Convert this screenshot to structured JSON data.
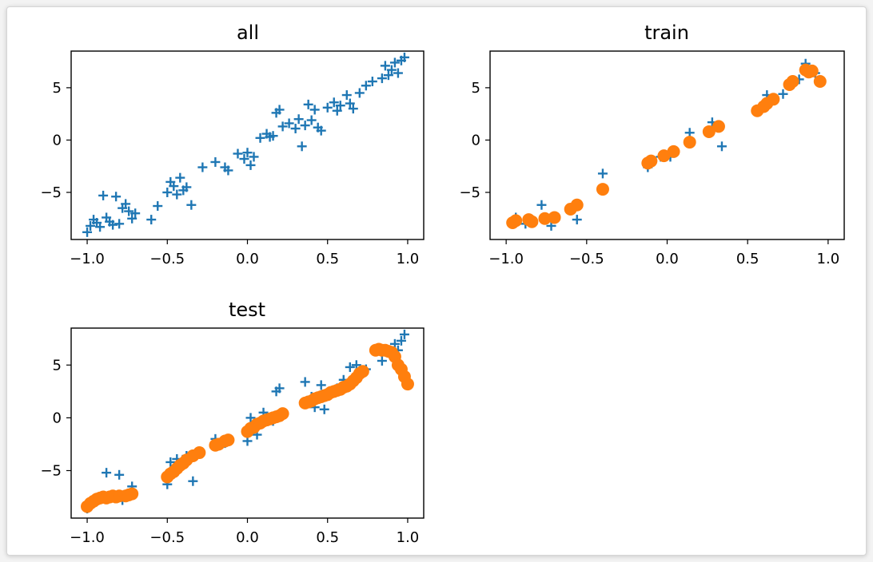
{
  "colors": {
    "series_plus": "#1f77b4",
    "series_dot": "#ff7f0e"
  },
  "chart_data": [
    {
      "type": "scatter",
      "title": "all",
      "xlim": [
        -1.1,
        1.1
      ],
      "ylim": [
        -9.5,
        8.5
      ],
      "xticks": [
        -1.0,
        -0.5,
        0.0,
        0.5,
        1.0
      ],
      "xtick_labels": [
        "−1.0",
        "−0.5",
        "0.0",
        "0.5",
        "1.0"
      ],
      "yticks": [
        -5,
        0,
        5
      ],
      "ytick_labels": [
        "−5",
        "0",
        "5"
      ],
      "series": [
        {
          "marker": "plus",
          "color": "#1f77b4",
          "points": [
            [
              -1.0,
              -8.8
            ],
            [
              -0.98,
              -8.2
            ],
            [
              -0.96,
              -7.6
            ],
            [
              -0.94,
              -7.9
            ],
            [
              -0.92,
              -8.3
            ],
            [
              -0.9,
              -5.3
            ],
            [
              -0.88,
              -7.4
            ],
            [
              -0.86,
              -7.8
            ],
            [
              -0.84,
              -8.1
            ],
            [
              -0.82,
              -5.4
            ],
            [
              -0.8,
              -8.0
            ],
            [
              -0.78,
              -6.5
            ],
            [
              -0.76,
              -6.1
            ],
            [
              -0.74,
              -6.8
            ],
            [
              -0.72,
              -7.5
            ],
            [
              -0.7,
              -7.0
            ],
            [
              -0.6,
              -7.6
            ],
            [
              -0.56,
              -6.3
            ],
            [
              -0.5,
              -5.0
            ],
            [
              -0.48,
              -4.0
            ],
            [
              -0.46,
              -4.4
            ],
            [
              -0.44,
              -5.2
            ],
            [
              -0.42,
              -3.6
            ],
            [
              -0.4,
              -4.8
            ],
            [
              -0.38,
              -4.5
            ],
            [
              -0.35,
              -6.2
            ],
            [
              -0.28,
              -2.6
            ],
            [
              -0.2,
              -2.1
            ],
            [
              -0.14,
              -2.6
            ],
            [
              -0.12,
              -2.9
            ],
            [
              -0.06,
              -1.3
            ],
            [
              -0.02,
              -1.8
            ],
            [
              0.0,
              -1.2
            ],
            [
              0.02,
              -2.4
            ],
            [
              0.04,
              -1.6
            ],
            [
              0.08,
              0.2
            ],
            [
              0.12,
              0.6
            ],
            [
              0.14,
              0.3
            ],
            [
              0.16,
              0.4
            ],
            [
              0.18,
              2.6
            ],
            [
              0.2,
              2.9
            ],
            [
              0.22,
              1.3
            ],
            [
              0.26,
              1.6
            ],
            [
              0.3,
              1.1
            ],
            [
              0.32,
              2.0
            ],
            [
              0.34,
              -0.6
            ],
            [
              0.36,
              1.4
            ],
            [
              0.38,
              3.4
            ],
            [
              0.4,
              1.9
            ],
            [
              0.42,
              2.9
            ],
            [
              0.44,
              1.2
            ],
            [
              0.46,
              0.9
            ],
            [
              0.5,
              3.1
            ],
            [
              0.54,
              3.6
            ],
            [
              0.56,
              2.8
            ],
            [
              0.58,
              3.3
            ],
            [
              0.62,
              4.3
            ],
            [
              0.64,
              3.5
            ],
            [
              0.66,
              3.0
            ],
            [
              0.7,
              4.5
            ],
            [
              0.74,
              5.2
            ],
            [
              0.78,
              5.6
            ],
            [
              0.84,
              5.9
            ],
            [
              0.86,
              7.1
            ],
            [
              0.88,
              6.2
            ],
            [
              0.9,
              6.7
            ],
            [
              0.92,
              7.4
            ],
            [
              0.94,
              6.4
            ],
            [
              0.96,
              7.6
            ],
            [
              0.98,
              7.9
            ]
          ]
        }
      ]
    },
    {
      "type": "scatter",
      "title": "train",
      "xlim": [
        -1.1,
        1.1
      ],
      "ylim": [
        -9.5,
        8.5
      ],
      "xticks": [
        -1.0,
        -0.5,
        0.0,
        0.5,
        1.0
      ],
      "xtick_labels": [
        "−1.0",
        "−0.5",
        "0.0",
        "0.5",
        "1.0"
      ],
      "yticks": [
        -5,
        0,
        5
      ],
      "ytick_labels": [
        "−5",
        "0",
        "5"
      ],
      "series": [
        {
          "marker": "plus",
          "color": "#1f77b4",
          "points": [
            [
              -0.94,
              -7.4
            ],
            [
              -0.88,
              -8.0
            ],
            [
              -0.78,
              -6.2
            ],
            [
              -0.72,
              -8.2
            ],
            [
              -0.56,
              -7.6
            ],
            [
              -0.4,
              -3.2
            ],
            [
              -0.12,
              -2.6
            ],
            [
              -0.04,
              -1.6
            ],
            [
              0.02,
              -1.6
            ],
            [
              0.14,
              0.7
            ],
            [
              0.28,
              1.7
            ],
            [
              0.34,
              -0.6
            ],
            [
              0.58,
              3.0
            ],
            [
              0.62,
              4.3
            ],
            [
              0.72,
              4.4
            ],
            [
              0.82,
              5.8
            ],
            [
              0.86,
              7.3
            ],
            [
              0.92,
              6.4
            ]
          ]
        },
        {
          "marker": "dot",
          "color": "#ff7f0e",
          "points": [
            [
              -0.96,
              -7.9
            ],
            [
              -0.94,
              -7.7
            ],
            [
              -0.86,
              -7.6
            ],
            [
              -0.84,
              -7.8
            ],
            [
              -0.76,
              -7.5
            ],
            [
              -0.7,
              -7.4
            ],
            [
              -0.6,
              -6.6
            ],
            [
              -0.56,
              -6.2
            ],
            [
              -0.4,
              -4.7
            ],
            [
              -0.12,
              -2.2
            ],
            [
              -0.1,
              -2.0
            ],
            [
              -0.02,
              -1.5
            ],
            [
              0.04,
              -1.1
            ],
            [
              0.14,
              -0.2
            ],
            [
              0.26,
              0.8
            ],
            [
              0.32,
              1.3
            ],
            [
              0.56,
              2.8
            ],
            [
              0.6,
              3.2
            ],
            [
              0.62,
              3.5
            ],
            [
              0.66,
              3.9
            ],
            [
              0.76,
              5.3
            ],
            [
              0.78,
              5.6
            ],
            [
              0.86,
              6.7
            ],
            [
              0.88,
              6.5
            ],
            [
              0.9,
              6.6
            ],
            [
              0.95,
              5.6
            ]
          ]
        }
      ]
    },
    {
      "type": "scatter",
      "title": "test",
      "xlim": [
        -1.1,
        1.1
      ],
      "ylim": [
        -9.5,
        8.5
      ],
      "xticks": [
        -1.0,
        -0.5,
        0.0,
        0.5,
        1.0
      ],
      "xtick_labels": [
        "−1.0",
        "−0.5",
        "0.0",
        "0.5",
        "1.0"
      ],
      "yticks": [
        -5,
        0,
        5
      ],
      "ytick_labels": [
        "−5",
        "0",
        "5"
      ],
      "series": [
        {
          "marker": "plus",
          "color": "#1f77b4",
          "points": [
            [
              -1.0,
              -8.6
            ],
            [
              -0.96,
              -8.0
            ],
            [
              -0.92,
              -7.6
            ],
            [
              -0.88,
              -5.2
            ],
            [
              -0.84,
              -7.3
            ],
            [
              -0.8,
              -5.4
            ],
            [
              -0.78,
              -7.8
            ],
            [
              -0.72,
              -6.5
            ],
            [
              -0.5,
              -6.3
            ],
            [
              -0.48,
              -4.2
            ],
            [
              -0.44,
              -3.9
            ],
            [
              -0.42,
              -4.6
            ],
            [
              -0.38,
              -3.6
            ],
            [
              -0.34,
              -6.0
            ],
            [
              -0.2,
              -2.0
            ],
            [
              -0.14,
              -2.4
            ],
            [
              0.0,
              -2.2
            ],
            [
              0.02,
              0.0
            ],
            [
              0.06,
              -1.6
            ],
            [
              0.1,
              0.5
            ],
            [
              0.16,
              -0.3
            ],
            [
              0.18,
              2.5
            ],
            [
              0.2,
              2.8
            ],
            [
              0.36,
              3.4
            ],
            [
              0.4,
              2.0
            ],
            [
              0.42,
              1.0
            ],
            [
              0.46,
              3.1
            ],
            [
              0.48,
              0.8
            ],
            [
              0.56,
              2.8
            ],
            [
              0.6,
              3.6
            ],
            [
              0.64,
              4.8
            ],
            [
              0.66,
              3.4
            ],
            [
              0.68,
              5.0
            ],
            [
              0.74,
              4.6
            ],
            [
              0.84,
              5.4
            ],
            [
              0.88,
              6.2
            ],
            [
              0.92,
              7.0
            ],
            [
              0.94,
              6.4
            ],
            [
              0.96,
              7.3
            ],
            [
              0.98,
              7.9
            ]
          ]
        },
        {
          "marker": "dot",
          "color": "#ff7f0e",
          "points": [
            [
              -1.0,
              -8.4
            ],
            [
              -0.98,
              -8.1
            ],
            [
              -0.96,
              -7.9
            ],
            [
              -0.94,
              -7.7
            ],
            [
              -0.92,
              -7.6
            ],
            [
              -0.9,
              -7.5
            ],
            [
              -0.88,
              -7.6
            ],
            [
              -0.86,
              -7.5
            ],
            [
              -0.84,
              -7.4
            ],
            [
              -0.82,
              -7.5
            ],
            [
              -0.8,
              -7.4
            ],
            [
              -0.76,
              -7.4
            ],
            [
              -0.74,
              -7.3
            ],
            [
              -0.72,
              -7.2
            ],
            [
              -0.5,
              -5.6
            ],
            [
              -0.48,
              -5.3
            ],
            [
              -0.46,
              -5.1
            ],
            [
              -0.44,
              -4.8
            ],
            [
              -0.42,
              -4.5
            ],
            [
              -0.4,
              -4.3
            ],
            [
              -0.38,
              -4.0
            ],
            [
              -0.34,
              -3.6
            ],
            [
              -0.3,
              -3.3
            ],
            [
              -0.2,
              -2.6
            ],
            [
              -0.18,
              -2.5
            ],
            [
              -0.14,
              -2.2
            ],
            [
              -0.12,
              -2.1
            ],
            [
              0.0,
              -1.3
            ],
            [
              0.02,
              -1.0
            ],
            [
              0.04,
              -0.9
            ],
            [
              0.06,
              -0.6
            ],
            [
              0.08,
              -0.5
            ],
            [
              0.1,
              -0.3
            ],
            [
              0.12,
              -0.2
            ],
            [
              0.14,
              -0.1
            ],
            [
              0.16,
              0.0
            ],
            [
              0.18,
              0.1
            ],
            [
              0.2,
              0.2
            ],
            [
              0.22,
              0.4
            ],
            [
              0.36,
              1.4
            ],
            [
              0.38,
              1.5
            ],
            [
              0.4,
              1.6
            ],
            [
              0.42,
              1.8
            ],
            [
              0.44,
              1.9
            ],
            [
              0.46,
              2.0
            ],
            [
              0.48,
              2.1
            ],
            [
              0.5,
              2.2
            ],
            [
              0.52,
              2.4
            ],
            [
              0.54,
              2.5
            ],
            [
              0.56,
              2.6
            ],
            [
              0.58,
              2.7
            ],
            [
              0.6,
              2.9
            ],
            [
              0.62,
              3.0
            ],
            [
              0.64,
              3.2
            ],
            [
              0.66,
              3.5
            ],
            [
              0.68,
              3.8
            ],
            [
              0.7,
              4.2
            ],
            [
              0.72,
              4.4
            ],
            [
              0.8,
              6.4
            ],
            [
              0.82,
              6.5
            ],
            [
              0.84,
              6.4
            ],
            [
              0.86,
              6.4
            ],
            [
              0.88,
              6.3
            ],
            [
              0.9,
              6.2
            ],
            [
              0.92,
              5.8
            ],
            [
              0.94,
              5.0
            ],
            [
              0.96,
              4.6
            ],
            [
              0.98,
              3.9
            ],
            [
              1.0,
              3.2
            ]
          ]
        }
      ]
    }
  ]
}
